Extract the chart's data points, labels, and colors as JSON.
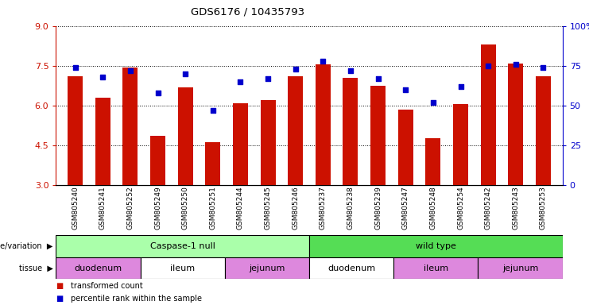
{
  "title": "GDS6176 / 10435793",
  "samples": [
    "GSM805240",
    "GSM805241",
    "GSM805252",
    "GSM805249",
    "GSM805250",
    "GSM805251",
    "GSM805244",
    "GSM805245",
    "GSM805246",
    "GSM805237",
    "GSM805238",
    "GSM805239",
    "GSM805247",
    "GSM805248",
    "GSM805254",
    "GSM805242",
    "GSM805243",
    "GSM805253"
  ],
  "bar_values": [
    7.1,
    6.3,
    7.45,
    4.85,
    6.7,
    4.6,
    6.1,
    6.2,
    7.1,
    7.55,
    7.05,
    6.75,
    5.85,
    4.75,
    6.05,
    8.3,
    7.6,
    7.1
  ],
  "percentile_values": [
    74,
    68,
    72,
    58,
    70,
    47,
    65,
    67,
    73,
    78,
    72,
    67,
    60,
    52,
    62,
    75,
    76,
    74
  ],
  "ylim_left": [
    3,
    9
  ],
  "ylim_right": [
    0,
    100
  ],
  "yticks_left": [
    3,
    4.5,
    6,
    7.5,
    9
  ],
  "yticks_right": [
    0,
    25,
    50,
    75,
    100
  ],
  "bar_color": "#cc1100",
  "dot_color": "#0000cc",
  "background_color": "#ffffff",
  "groups": [
    {
      "label": "Caspase-1 null",
      "start": 0,
      "end": 9,
      "color": "#aaffaa"
    },
    {
      "label": "wild type",
      "start": 9,
      "end": 18,
      "color": "#55dd55"
    }
  ],
  "tissues": [
    {
      "label": "duodenum",
      "start": 0,
      "end": 3,
      "color": "#dd88dd"
    },
    {
      "label": "ileum",
      "start": 3,
      "end": 6,
      "color": "#ffffff"
    },
    {
      "label": "jejunum",
      "start": 6,
      "end": 9,
      "color": "#dd88dd"
    },
    {
      "label": "duodenum",
      "start": 9,
      "end": 12,
      "color": "#ffffff"
    },
    {
      "label": "ileum",
      "start": 12,
      "end": 15,
      "color": "#dd88dd"
    },
    {
      "label": "jejunum",
      "start": 15,
      "end": 18,
      "color": "#dd88dd"
    }
  ],
  "legend_items": [
    {
      "label": "transformed count",
      "color": "#cc1100"
    },
    {
      "label": "percentile rank within the sample",
      "color": "#0000cc"
    }
  ]
}
